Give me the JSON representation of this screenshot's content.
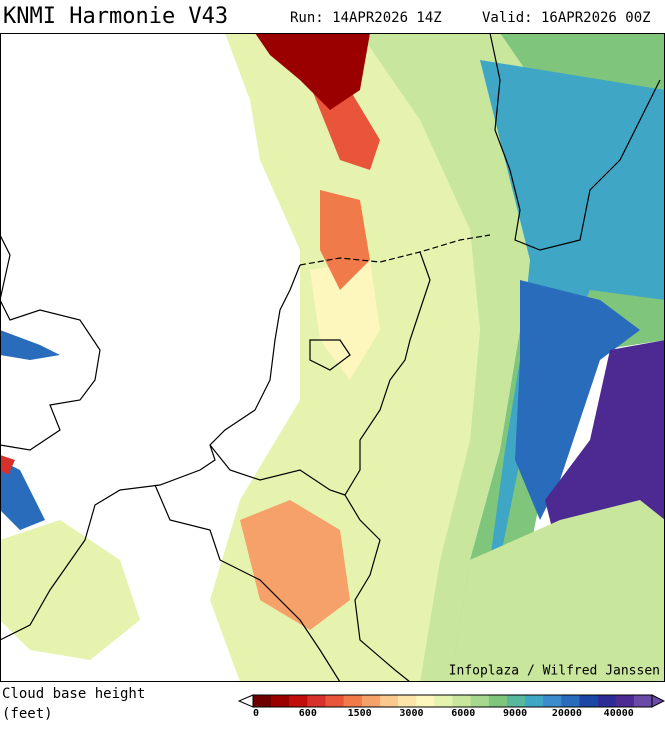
{
  "header": {
    "title": "KNMI Harmonie V43",
    "run": "Run: 14APR2026 14Z",
    "valid": "Valid: 16APR2026 00Z"
  },
  "map": {
    "credit": "Infoplaza / Wilfred Janssen"
  },
  "legend": {
    "title": "Cloud base height",
    "unit": "(feet)",
    "ticks": [
      "0",
      "600",
      "1500",
      "3000",
      "6000",
      "9000",
      "20000",
      "40000"
    ],
    "colors": [
      "#6e0000",
      "#9a0000",
      "#c20d0d",
      "#d8302a",
      "#e8553a",
      "#f07a4a",
      "#f6a06a",
      "#fbc88e",
      "#fde4a8",
      "#fdf6bd",
      "#e6f3ae",
      "#c8e69c",
      "#a6d98e",
      "#7fc67c",
      "#58b89e",
      "#3fa6c6",
      "#3a8ccc",
      "#2a6cbc",
      "#1c46a6",
      "#2c2c96",
      "#4d2a92",
      "#6a4aa6"
    ]
  }
}
